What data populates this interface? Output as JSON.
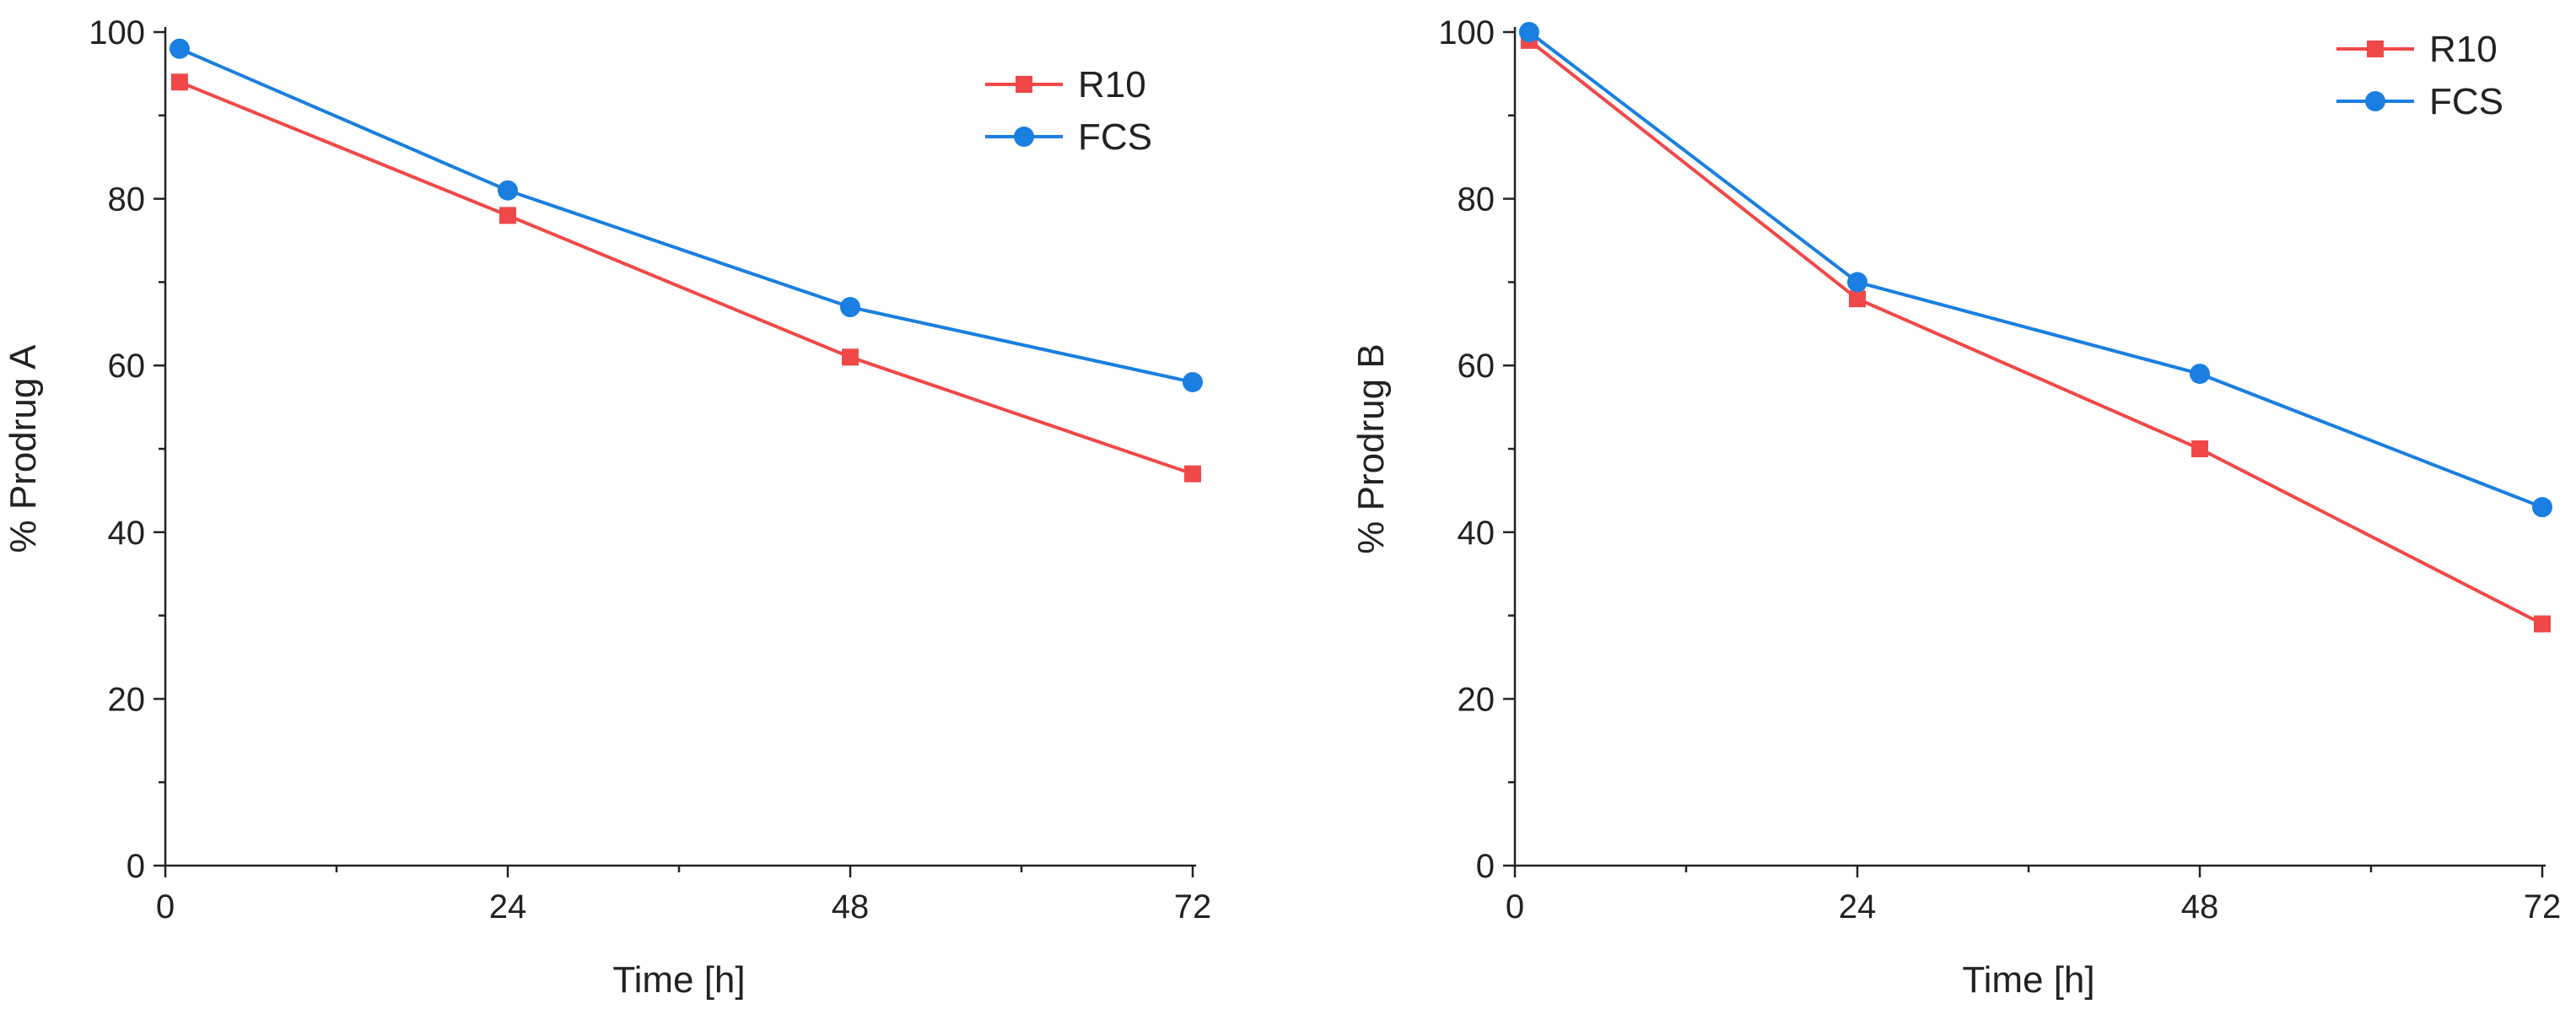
{
  "figure": {
    "colors": {
      "R10": "#f04848",
      "FCS": "#1a7fe0",
      "axis": "#222222"
    }
  },
  "chart_data": [
    {
      "type": "line",
      "panel": "left",
      "title": "",
      "xlabel": "Time [h]",
      "ylabel": "% Prodrug A",
      "xlim": [
        0,
        72
      ],
      "ylim": [
        0,
        100
      ],
      "xticks": [
        0,
        24,
        48,
        72
      ],
      "xticks_minor": [
        12,
        36,
        60
      ],
      "yticks": [
        0,
        20,
        40,
        60,
        80,
        100
      ],
      "yticks_minor": [
        10,
        30,
        50,
        70,
        90
      ],
      "legend": "top-right",
      "grid": false,
      "series": [
        {
          "name": "R10",
          "marker": "square",
          "x": [
            1,
            24,
            48,
            72
          ],
          "values": [
            94,
            78,
            61,
            47
          ]
        },
        {
          "name": "FCS",
          "marker": "circle",
          "x": [
            1,
            24,
            48,
            72
          ],
          "values": [
            98,
            81,
            67,
            58
          ]
        }
      ]
    },
    {
      "type": "line",
      "panel": "right",
      "title": "",
      "xlabel": "Time [h]",
      "ylabel": "% Prodrug B",
      "xlim": [
        0,
        72
      ],
      "ylim": [
        0,
        100
      ],
      "xticks": [
        0,
        24,
        48,
        72
      ],
      "xticks_minor": [
        12,
        36,
        60
      ],
      "yticks": [
        0,
        20,
        40,
        60,
        80,
        100
      ],
      "yticks_minor": [
        10,
        30,
        50,
        70,
        90
      ],
      "legend": "top-right",
      "grid": false,
      "series": [
        {
          "name": "R10",
          "marker": "square",
          "x": [
            1,
            24,
            48,
            72
          ],
          "values": [
            99,
            68,
            50,
            29
          ]
        },
        {
          "name": "FCS",
          "marker": "circle",
          "x": [
            1,
            24,
            48,
            72
          ],
          "values": [
            100,
            70,
            59,
            43
          ]
        }
      ]
    }
  ]
}
